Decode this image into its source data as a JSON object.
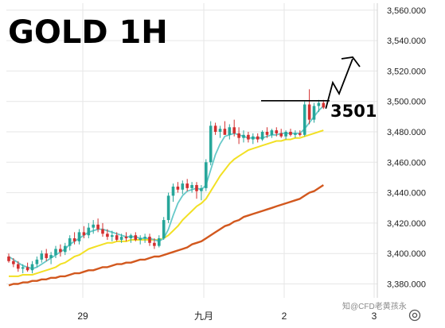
{
  "chart_data": {
    "type": "candlestick",
    "title": "GOLD 1H",
    "ylim": [
      3370,
      3565
    ],
    "y_ticks": [
      3380,
      3400,
      3420,
      3440,
      3460,
      3480,
      3500,
      3520,
      3540,
      3560
    ],
    "y_tick_labels": [
      "3,380.000",
      "3,400.000",
      "3,420.000",
      "3,440.000",
      "3,460.000",
      "3,480.000",
      "3,500.000",
      "3,520.000",
      "3,540.000",
      "3,560.000"
    ],
    "x_tick_labels": [
      "29",
      "九月",
      "2",
      "3"
    ],
    "grid": true,
    "colors": {
      "up": "#26a69a",
      "down": "#d32f2f",
      "ma_fast": "#67c9c9",
      "ma_mid": "#f2e024",
      "ma_slow": "#d2581e"
    },
    "candles": [
      {
        "o": 3398,
        "h": 3400,
        "l": 3394,
        "c": 3395
      },
      {
        "o": 3395,
        "h": 3397,
        "l": 3391,
        "c": 3393
      },
      {
        "o": 3393,
        "h": 3395,
        "l": 3388,
        "c": 3390
      },
      {
        "o": 3390,
        "h": 3393,
        "l": 3387,
        "c": 3391
      },
      {
        "o": 3391,
        "h": 3394,
        "l": 3388,
        "c": 3389
      },
      {
        "o": 3389,
        "h": 3395,
        "l": 3387,
        "c": 3393
      },
      {
        "o": 3393,
        "h": 3398,
        "l": 3391,
        "c": 3396
      },
      {
        "o": 3396,
        "h": 3402,
        "l": 3394,
        "c": 3400
      },
      {
        "o": 3400,
        "h": 3403,
        "l": 3395,
        "c": 3397
      },
      {
        "o": 3397,
        "h": 3401,
        "l": 3393,
        "c": 3399
      },
      {
        "o": 3399,
        "h": 3405,
        "l": 3397,
        "c": 3403
      },
      {
        "o": 3403,
        "h": 3406,
        "l": 3398,
        "c": 3401
      },
      {
        "o": 3401,
        "h": 3407,
        "l": 3399,
        "c": 3405
      },
      {
        "o": 3405,
        "h": 3412,
        "l": 3402,
        "c": 3410
      },
      {
        "o": 3410,
        "h": 3414,
        "l": 3406,
        "c": 3408
      },
      {
        "o": 3408,
        "h": 3416,
        "l": 3406,
        "c": 3414
      },
      {
        "o": 3414,
        "h": 3418,
        "l": 3410,
        "c": 3412
      },
      {
        "o": 3412,
        "h": 3420,
        "l": 3410,
        "c": 3417
      },
      {
        "o": 3417,
        "h": 3422,
        "l": 3413,
        "c": 3419
      },
      {
        "o": 3419,
        "h": 3423,
        "l": 3414,
        "c": 3416
      },
      {
        "o": 3416,
        "h": 3420,
        "l": 3411,
        "c": 3413
      },
      {
        "o": 3413,
        "h": 3416,
        "l": 3409,
        "c": 3411
      },
      {
        "o": 3411,
        "h": 3415,
        "l": 3408,
        "c": 3412
      },
      {
        "o": 3412,
        "h": 3414,
        "l": 3408,
        "c": 3409
      },
      {
        "o": 3409,
        "h": 3413,
        "l": 3407,
        "c": 3411
      },
      {
        "o": 3411,
        "h": 3414,
        "l": 3408,
        "c": 3410
      },
      {
        "o": 3410,
        "h": 3413,
        "l": 3407,
        "c": 3412
      },
      {
        "o": 3412,
        "h": 3414,
        "l": 3408,
        "c": 3409
      },
      {
        "o": 3409,
        "h": 3412,
        "l": 3406,
        "c": 3410
      },
      {
        "o": 3410,
        "h": 3413,
        "l": 3407,
        "c": 3411
      },
      {
        "o": 3411,
        "h": 3413,
        "l": 3405,
        "c": 3407
      },
      {
        "o": 3407,
        "h": 3410,
        "l": 3403,
        "c": 3405
      },
      {
        "o": 3405,
        "h": 3412,
        "l": 3404,
        "c": 3410
      },
      {
        "o": 3410,
        "h": 3424,
        "l": 3409,
        "c": 3422
      },
      {
        "o": 3422,
        "h": 3440,
        "l": 3420,
        "c": 3438
      },
      {
        "o": 3438,
        "h": 3446,
        "l": 3434,
        "c": 3444
      },
      {
        "o": 3444,
        "h": 3447,
        "l": 3440,
        "c": 3442
      },
      {
        "o": 3442,
        "h": 3448,
        "l": 3439,
        "c": 3446
      },
      {
        "o": 3446,
        "h": 3449,
        "l": 3441,
        "c": 3443
      },
      {
        "o": 3443,
        "h": 3447,
        "l": 3440,
        "c": 3445
      },
      {
        "o": 3445,
        "h": 3447,
        "l": 3436,
        "c": 3441
      },
      {
        "o": 3441,
        "h": 3445,
        "l": 3435,
        "c": 3443
      },
      {
        "o": 3443,
        "h": 3462,
        "l": 3441,
        "c": 3460
      },
      {
        "o": 3460,
        "h": 3487,
        "l": 3458,
        "c": 3484
      },
      {
        "o": 3484,
        "h": 3486,
        "l": 3478,
        "c": 3480
      },
      {
        "o": 3480,
        "h": 3484,
        "l": 3476,
        "c": 3482
      },
      {
        "o": 3482,
        "h": 3487,
        "l": 3479,
        "c": 3478
      },
      {
        "o": 3478,
        "h": 3485,
        "l": 3475,
        "c": 3483
      },
      {
        "o": 3483,
        "h": 3488,
        "l": 3477,
        "c": 3479
      },
      {
        "o": 3479,
        "h": 3483,
        "l": 3472,
        "c": 3476
      },
      {
        "o": 3476,
        "h": 3481,
        "l": 3473,
        "c": 3478
      },
      {
        "o": 3478,
        "h": 3480,
        "l": 3473,
        "c": 3475
      },
      {
        "o": 3475,
        "h": 3479,
        "l": 3472,
        "c": 3477
      },
      {
        "o": 3477,
        "h": 3479,
        "l": 3473,
        "c": 3475
      },
      {
        "o": 3475,
        "h": 3481,
        "l": 3474,
        "c": 3480
      },
      {
        "o": 3480,
        "h": 3483,
        "l": 3476,
        "c": 3478
      },
      {
        "o": 3478,
        "h": 3482,
        "l": 3476,
        "c": 3481
      },
      {
        "o": 3481,
        "h": 3483,
        "l": 3477,
        "c": 3479
      },
      {
        "o": 3479,
        "h": 3482,
        "l": 3476,
        "c": 3477
      },
      {
        "o": 3477,
        "h": 3481,
        "l": 3475,
        "c": 3480
      },
      {
        "o": 3480,
        "h": 3482,
        "l": 3477,
        "c": 3478
      },
      {
        "o": 3478,
        "h": 3481,
        "l": 3476,
        "c": 3479
      },
      {
        "o": 3479,
        "h": 3481,
        "l": 3477,
        "c": 3478
      },
      {
        "o": 3478,
        "h": 3500,
        "l": 3477,
        "c": 3498
      },
      {
        "o": 3498,
        "h": 3508,
        "l": 3485,
        "c": 3488
      },
      {
        "o": 3488,
        "h": 3499,
        "l": 3486,
        "c": 3497
      },
      {
        "o": 3497,
        "h": 3501,
        "l": 3493,
        "c": 3499
      },
      {
        "o": 3499,
        "h": 3501,
        "l": 3495,
        "c": 3496
      }
    ],
    "ma_fast": [
      3398,
      3396,
      3394,
      3392,
      3391,
      3390,
      3391,
      3393,
      3395,
      3397,
      3399,
      3401,
      3403,
      3406,
      3408,
      3410,
      3412,
      3414,
      3415,
      3416,
      3416,
      3415,
      3414,
      3413,
      3412,
      3411,
      3411,
      3411,
      3410,
      3410,
      3410,
      3409,
      3408,
      3410,
      3416,
      3425,
      3433,
      3438,
      3441,
      3442,
      3443,
      3442,
      3445,
      3455,
      3465,
      3472,
      3477,
      3478,
      3479,
      3478,
      3477,
      3476,
      3476,
      3476,
      3476,
      3477,
      3478,
      3478,
      3479,
      3479,
      3479,
      3479,
      3479,
      3482,
      3486,
      3490,
      3494,
      3497
    ],
    "ma_mid": [
      3385,
      3385,
      3385,
      3386,
      3386,
      3386,
      3387,
      3388,
      3389,
      3390,
      3391,
      3393,
      3394,
      3396,
      3398,
      3399,
      3401,
      3403,
      3404,
      3405,
      3406,
      3407,
      3407,
      3408,
      3408,
      3408,
      3409,
      3409,
      3409,
      3409,
      3409,
      3409,
      3409,
      3410,
      3412,
      3415,
      3418,
      3422,
      3425,
      3428,
      3431,
      3433,
      3436,
      3441,
      3446,
      3451,
      3455,
      3459,
      3462,
      3464,
      3466,
      3468,
      3469,
      3470,
      3471,
      3472,
      3473,
      3474,
      3474,
      3475,
      3475,
      3476,
      3476,
      3477,
      3478,
      3479,
      3480,
      3481
    ],
    "ma_slow": [
      3379,
      3380,
      3380,
      3381,
      3381,
      3382,
      3382,
      3383,
      3383,
      3384,
      3384,
      3385,
      3385,
      3386,
      3387,
      3387,
      3388,
      3389,
      3389,
      3390,
      3391,
      3391,
      3392,
      3393,
      3393,
      3394,
      3394,
      3395,
      3396,
      3396,
      3397,
      3398,
      3398,
      3399,
      3400,
      3401,
      3402,
      3403,
      3404,
      3406,
      3407,
      3408,
      3410,
      3412,
      3414,
      3416,
      3418,
      3419,
      3421,
      3422,
      3424,
      3425,
      3426,
      3427,
      3428,
      3429,
      3430,
      3431,
      3432,
      3433,
      3434,
      3435,
      3436,
      3438,
      3440,
      3441,
      3443,
      3445
    ],
    "resistance": {
      "level": 3501,
      "label": "3501"
    },
    "watermark": "知@CFD老黄孩永",
    "settings_icon": "gear-icon"
  }
}
